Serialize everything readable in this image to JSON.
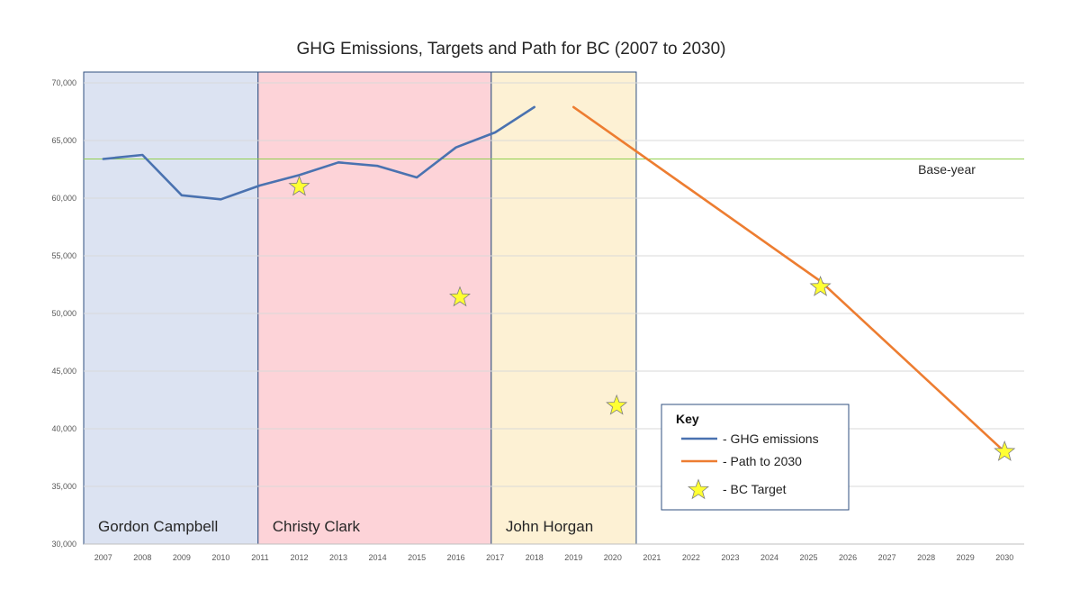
{
  "chart_data": {
    "type": "line",
    "title": "GHG Emissions, Targets and Path for BC (2007 to 2030)",
    "categories": [
      "2007",
      "2008",
      "2009",
      "2010",
      "2011",
      "2012",
      "2013",
      "2014",
      "2015",
      "2016",
      "2017",
      "2018",
      "2019",
      "2020",
      "2021",
      "2022",
      "2023",
      "2024",
      "2025",
      "2026",
      "2027",
      "2028",
      "2029",
      "2030"
    ],
    "ylim": [
      30000,
      70000
    ],
    "yticks": [
      30000,
      35000,
      40000,
      45000,
      50000,
      55000,
      60000,
      65000,
      70000
    ],
    "ytick_labels": [
      "30,000",
      "35,000",
      "40,000",
      "45,000",
      "50,000",
      "55,000",
      "60,000",
      "65,000",
      "70,000"
    ],
    "grid": true,
    "series": [
      {
        "name": "GHG emissions",
        "color": "#4a72b0",
        "x": [
          2007,
          2008,
          2009,
          2010,
          2011,
          2012,
          2013,
          2014,
          2015,
          2016,
          2017,
          2018
        ],
        "values": [
          63400,
          63750,
          60250,
          59900,
          61100,
          62000,
          63100,
          62800,
          61800,
          64400,
          65700,
          67900
        ]
      },
      {
        "name": "Path to 2030",
        "color": "#ed7d31",
        "x": [
          2019,
          2025.3,
          2030
        ],
        "values": [
          67900,
          52800,
          38000
        ]
      }
    ],
    "targets": {
      "name": "BC Target",
      "color": "#ffff33",
      "x": [
        2012,
        2016.1,
        2020.1,
        2025.3,
        2030
      ],
      "values": [
        61000,
        51400,
        42000,
        52300,
        38000
      ]
    },
    "baseline": {
      "label": "Base-year",
      "value": 63400,
      "color": "#92d050"
    },
    "eras": [
      {
        "name": "Gordon Campbell",
        "start": 2006.5,
        "end": 2010.95,
        "color": "#dce3f2"
      },
      {
        "name": "Christy Clark",
        "start": 2010.95,
        "end": 2016.9,
        "color": "#fdd3d8"
      },
      {
        "name": "John Horgan",
        "start": 2016.9,
        "end": 2020.6,
        "color": "#fdf1d4"
      }
    ],
    "legend": {
      "title": "Key",
      "position": "lower-center",
      "entries": [
        "- GHG emissions",
        "- Path to 2030",
        "- BC Target"
      ]
    }
  }
}
